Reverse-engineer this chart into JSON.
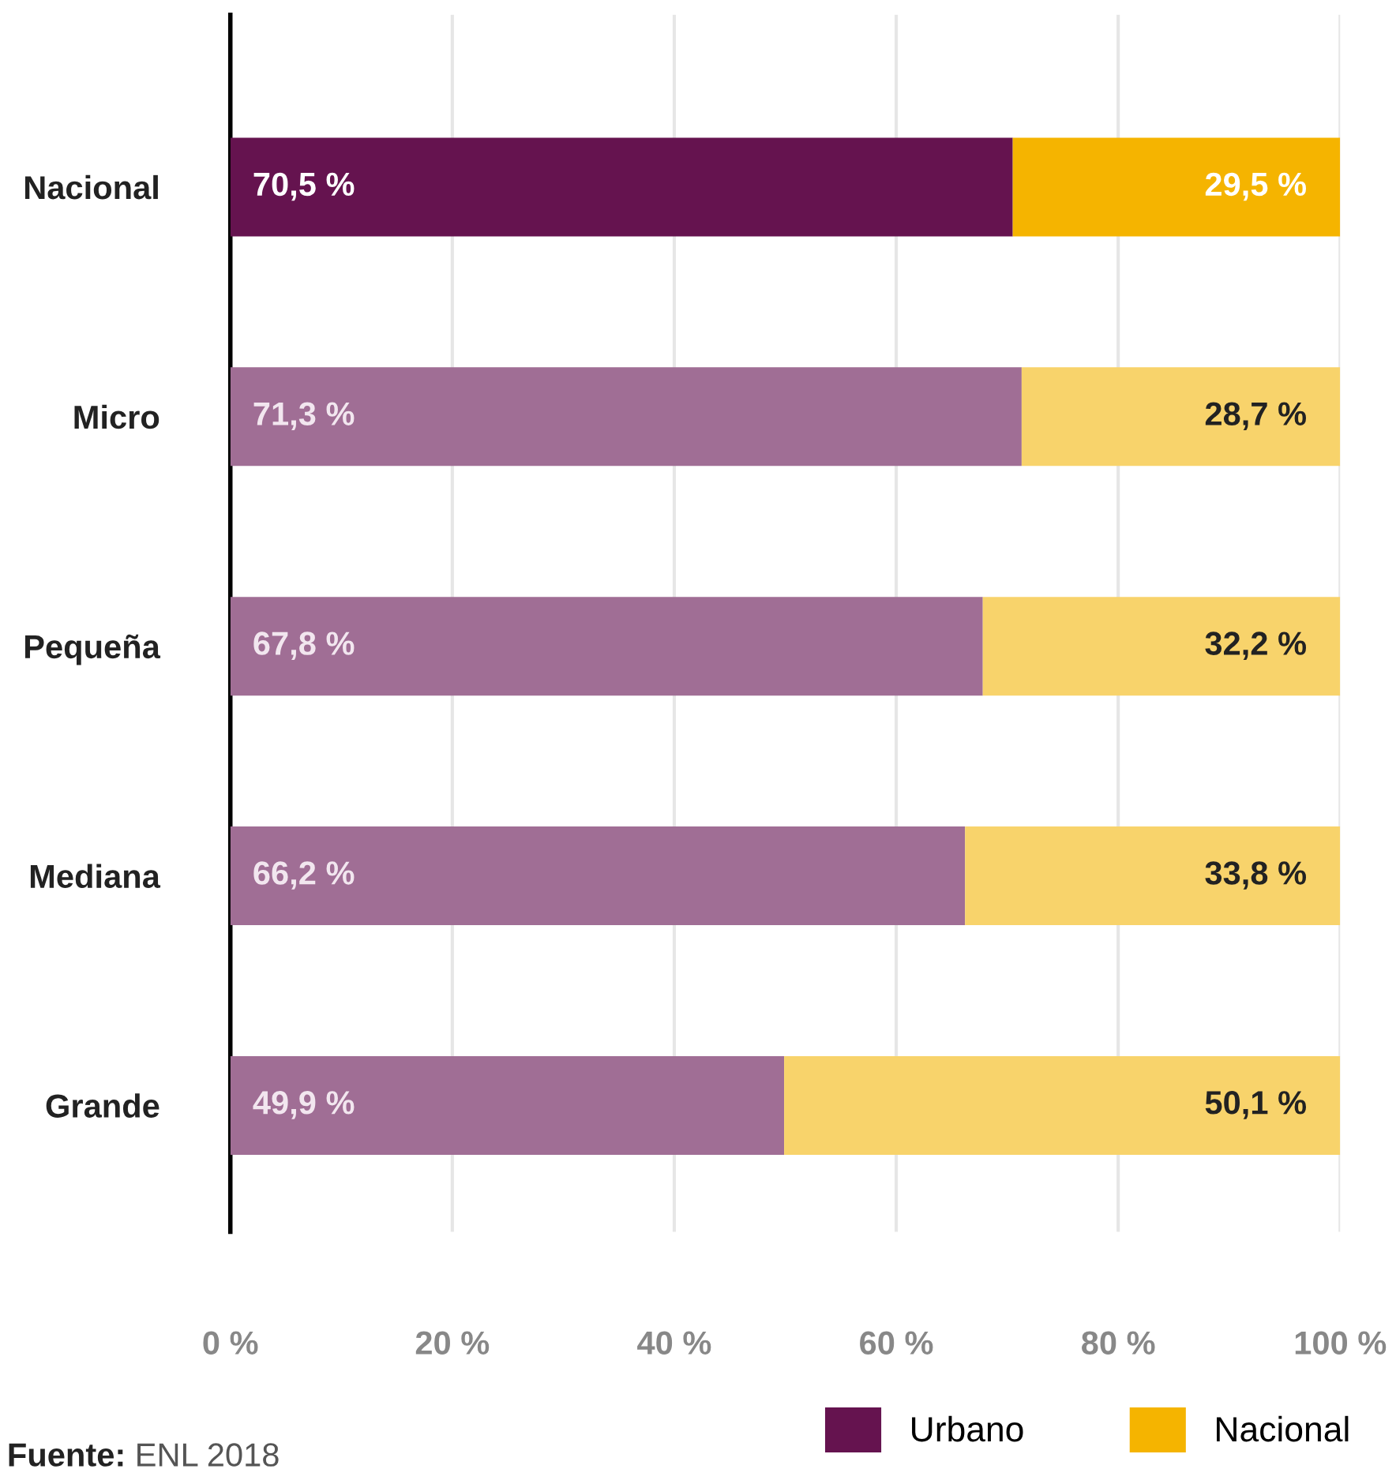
{
  "chart_data": {
    "type": "bar",
    "orientation": "horizontal",
    "stacked": true,
    "categories": [
      "Nacional",
      "Micro",
      "Pequeña",
      "Mediana",
      "Grande"
    ],
    "series": [
      {
        "name": "Urbano",
        "color": "#65134f",
        "colors": [
          "#65134f",
          "#a06e95",
          "#a06e95",
          "#a06e95",
          "#a06e95"
        ],
        "values": [
          70.5,
          71.3,
          67.8,
          66.2,
          49.9
        ],
        "value_labels": [
          "70,5 %",
          "71,3 %",
          "67,8 %",
          "66,2 %",
          "49,9 %"
        ]
      },
      {
        "name": "Nacional",
        "color": "#f5b400",
        "colors": [
          "#f5b400",
          "#f8d36b",
          "#f8d36b",
          "#f8d36b",
          "#f8d36b"
        ],
        "values": [
          29.5,
          28.7,
          32.2,
          33.8,
          50.1
        ],
        "value_labels": [
          "29,5 %",
          "28,7 %",
          "32,2 %",
          "33,8 %",
          "50,1 %"
        ]
      }
    ],
    "xlim": [
      0,
      100
    ],
    "xticks": [
      {
        "value": 0,
        "label": "0 %"
      },
      {
        "value": 20,
        "label": "20 %"
      },
      {
        "value": 40,
        "label": "40 %"
      },
      {
        "value": 60,
        "label": "60 %"
      },
      {
        "value": 80,
        "label": "80 %"
      },
      {
        "value": 100,
        "label": "100 %"
      }
    ],
    "grid": "x",
    "legend": "bottom right",
    "annotations": [
      "Fuente: ENL 2018"
    ]
  }
}
